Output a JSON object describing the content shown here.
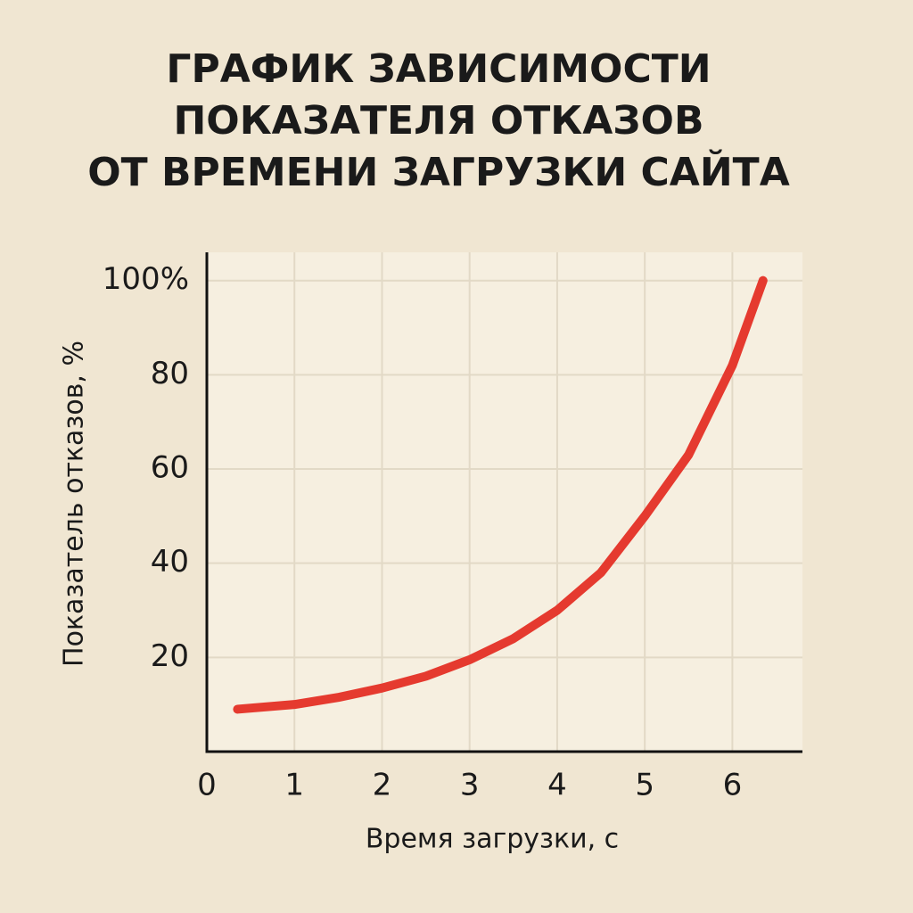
{
  "chart_data": {
    "type": "line",
    "title": [
      "ГРАФИК ЗАВИСИМОСТИ",
      "ПОКАЗАТЕЛЯ ОТКАЗОВ",
      "ОТ ВРЕМЕНИ ЗАГРУЗКИ САЙТА"
    ],
    "xlabel": "Время загрузки, с",
    "ylabel": "Показатель отказов, %",
    "x": [
      0.35,
      1,
      1.5,
      2,
      2.5,
      3,
      3.5,
      4,
      4.5,
      5,
      5.5,
      6,
      6.35
    ],
    "series": [
      {
        "color": "#e53a2f",
        "values": [
          9,
          10,
          11.5,
          13.5,
          16,
          19.5,
          24,
          30,
          38,
          50,
          63,
          82,
          100
        ]
      }
    ],
    "xlim": [
      0,
      6.8
    ],
    "xticks": [
      0,
      1,
      2,
      3,
      4,
      5,
      6
    ],
    "ylim": [
      0,
      106
    ],
    "yticks": [
      20,
      40,
      60,
      {
        "value": 100,
        "label": "100%"
      },
      80
    ],
    "grid": true
  }
}
